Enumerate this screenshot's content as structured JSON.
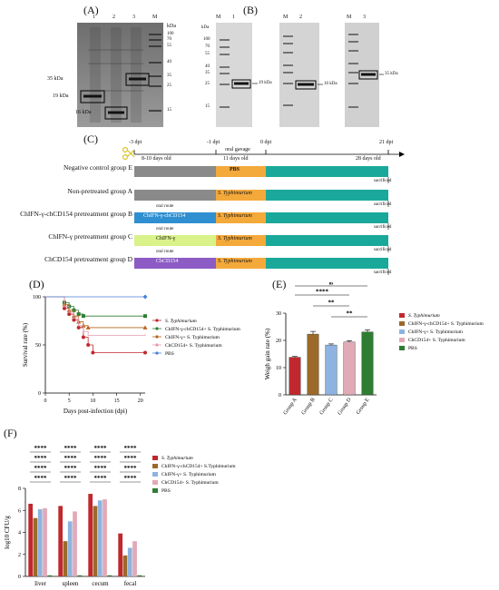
{
  "panels": {
    "A": {
      "label": "(A)",
      "lane_labels": [
        "1",
        "2",
        "3",
        "M"
      ],
      "kda_header": "kDa",
      "marker_ticks": [
        "100",
        "70",
        "55",
        "40",
        "35",
        "25",
        "15"
      ],
      "band_labels": [
        "35 kDa",
        "19 kDa",
        "16 kDa"
      ]
    },
    "B": {
      "label": "(B)",
      "blots": [
        {
          "lanes": [
            "M",
            "1"
          ],
          "band_label": "19 kDa"
        },
        {
          "lanes": [
            "M",
            "2"
          ],
          "band_label": "16 kDa"
        },
        {
          "lanes": [
            "M",
            "3"
          ],
          "band_label": "35 kDa"
        }
      ],
      "kda_header": "kDa",
      "marker_ticks": [
        "100",
        "70",
        "55",
        "40",
        "35",
        "25",
        "15"
      ]
    },
    "C": {
      "label": "(C)",
      "timepoints": [
        "-3 dpi",
        "-1 dpi",
        "0 dpi",
        "21 dpi"
      ],
      "phase_labels": [
        "8-10 days old",
        "oral gavage",
        "11 days old",
        "28 days old"
      ],
      "sacrificed": "sacrificed",
      "oral_route": "oral route",
      "groups": [
        {
          "name": "Negative control group E",
          "pre": "",
          "challenge": "PBS",
          "pre_color": "#8a8a8a",
          "oral": false
        },
        {
          "name": "Non-pretreated group A",
          "pre": "",
          "challenge": "S. Typhimurium",
          "pre_color": "#8a8a8a",
          "oral": false
        },
        {
          "name": "ChIFN-γ-chCD154 pretreatment group B",
          "pre": "ChIFN-γ-chCD154",
          "challenge": "S. Typhimurium",
          "pre_color": "#2f8fd0",
          "oral": true
        },
        {
          "name": "ChIFN-γ pretreatment group C",
          "pre": "ChIFN-γ",
          "challenge": "S. Typhimurium",
          "pre_color": "#d9f28a",
          "oral": true
        },
        {
          "name": "ChCD154 pretreatment group D",
          "pre": "ChCD154",
          "challenge": "S. Typhimurium",
          "pre_color": "#8c5cc4",
          "oral": true
        }
      ],
      "colors": {
        "challenge": "#f4a93b",
        "post": "#1aa89a"
      }
    },
    "D": {
      "label": "(D)"
    },
    "E": {
      "label": "(E)"
    },
    "F": {
      "label": "(F)"
    }
  },
  "chart_data": [
    {
      "type": "line",
      "panel": "D",
      "xlabel": "Days post-infection (dpi)",
      "ylabel": "Survival rate (%)",
      "xlim": [
        0,
        21
      ],
      "ylim": [
        0,
        100
      ],
      "xticks": [
        0,
        5,
        10,
        15,
        20
      ],
      "yticks": [
        0,
        50,
        100
      ],
      "series": [
        {
          "name": "S. Typhimurium",
          "color": "#c0282d",
          "marker": "circle",
          "x": [
            0,
            4,
            5,
            6,
            7,
            8,
            9,
            10,
            21
          ],
          "y": [
            100,
            88,
            82,
            76,
            68,
            58,
            50,
            42,
            42
          ]
        },
        {
          "name": "ChIFN-γ-chCD154+ S. Typhimurium",
          "color": "#2e7d32",
          "marker": "square",
          "x": [
            0,
            4,
            5,
            6,
            7,
            8,
            21
          ],
          "y": [
            100,
            94,
            90,
            86,
            82,
            80,
            80
          ]
        },
        {
          "name": "ChIFN-γ+ S. Typhimurium",
          "color": "#b5651d",
          "marker": "triangle",
          "x": [
            0,
            4,
            5,
            6,
            7,
            8,
            9,
            21
          ],
          "y": [
            100,
            92,
            86,
            80,
            74,
            70,
            68,
            68
          ]
        },
        {
          "name": "ChCD154+ S. Typhimurium",
          "color": "#e39bb0",
          "marker": "cross",
          "x": [
            0,
            4,
            5,
            6,
            7,
            8,
            9,
            21
          ],
          "y": [
            100,
            90,
            84,
            78,
            70,
            64,
            60,
            60
          ]
        },
        {
          "name": "PBS",
          "color": "#4a7fd8",
          "marker": "diamond",
          "x": [
            0,
            21
          ],
          "y": [
            100,
            100
          ]
        }
      ]
    },
    {
      "type": "bar",
      "panel": "E",
      "ylabel": "Weigh gain rate (%)",
      "categories": [
        "Group A",
        "Group B",
        "Group C",
        "Group D",
        "Group E"
      ],
      "values": [
        13.8,
        22.3,
        18.3,
        19.4,
        23.1
      ],
      "errors": [
        0.3,
        1.0,
        0.4,
        0.5,
        0.8
      ],
      "colors": [
        "#c0282d",
        "#9b6a2a",
        "#8eb3e0",
        "#e2a9b6",
        "#2e7d32"
      ],
      "ylim": [
        0,
        30
      ],
      "yticks": [
        0,
        10,
        20,
        30
      ],
      "legend": [
        "S. Typhimurium",
        "ChIFN-γ-chCD154+ S. Typhimurium",
        "ChIFN-γ+ S. Typhimurium",
        "ChCD154+ S. Typhimurium",
        "PBS"
      ],
      "significance": [
        {
          "from": 0,
          "to": 4,
          "label": "ns"
        },
        {
          "from": 0,
          "to": 3,
          "label": "****"
        },
        {
          "from": 1,
          "to": 3,
          "label": "**"
        },
        {
          "from": 2,
          "to": 4,
          "label": "**"
        }
      ]
    },
    {
      "type": "bar",
      "panel": "F",
      "ylabel": "log10 CFU/g",
      "categories": [
        "liver",
        "spleen",
        "cecum",
        "fecal"
      ],
      "ylim": [
        0,
        8
      ],
      "yticks": [
        0,
        2,
        4,
        6,
        8
      ],
      "series": [
        {
          "name": "S. Typhimurium",
          "color": "#c0282d",
          "values": [
            6.6,
            6.4,
            7.5,
            3.9
          ]
        },
        {
          "name": "ChIFN-γ-chCD154+ S.Typhimurium",
          "color": "#9b6a2a",
          "values": [
            5.3,
            3.2,
            6.4,
            1.9
          ]
        },
        {
          "name": "ChIFN-γ+ S. Typhimurium",
          "color": "#8eb3e0",
          "values": [
            6.1,
            5.0,
            6.9,
            2.6
          ]
        },
        {
          "name": "ChCD154+ S. Typhimurium",
          "color": "#e2a9b6",
          "values": [
            6.2,
            5.9,
            7.0,
            3.2
          ]
        },
        {
          "name": "PBS",
          "color": "#2e7d32",
          "values": [
            0.1,
            0.1,
            0.1,
            0.1
          ]
        }
      ],
      "significance_label": "****"
    }
  ]
}
